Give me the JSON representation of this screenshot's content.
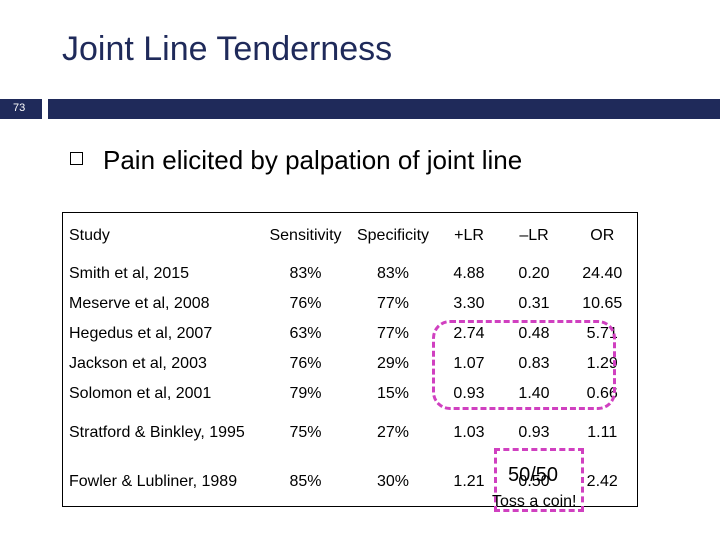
{
  "header": {
    "title": "Joint Line Tenderness",
    "slide_number": "73"
  },
  "bullet": "Pain elicited by palpation of joint line",
  "table": {
    "columns": [
      "Study",
      "Sensitivity",
      "Specificity",
      "+LR",
      "–LR",
      "OR"
    ],
    "rows": [
      [
        "Smith et al, 2015",
        "83%",
        "83%",
        "4.88",
        "0.20",
        "24.40"
      ],
      [
        "Meserve et al, 2008",
        "76%",
        "77%",
        "3.30",
        "0.31",
        "10.65"
      ],
      [
        "Hegedus et al, 2007",
        "63%",
        "77%",
        "2.74",
        "0.48",
        "5.71"
      ],
      [
        "Jackson et al, 2003",
        "76%",
        "29%",
        "1.07",
        "0.83",
        "1.29"
      ],
      [
        "Solomon et al, 2001",
        "79%",
        "15%",
        "0.93",
        "1.40",
        "0.66"
      ],
      [
        "Stratford & Binkley, 1995",
        "75%",
        "27%",
        "1.03",
        "0.93",
        "1.11"
      ],
      [
        "Fowler & Lubliner, 1989",
        "85%",
        "30%",
        "1.21",
        "0.50",
        "2.42"
      ]
    ]
  },
  "annotations": {
    "fifty_fifty": "50/50",
    "toss": "Toss a coin!"
  }
}
